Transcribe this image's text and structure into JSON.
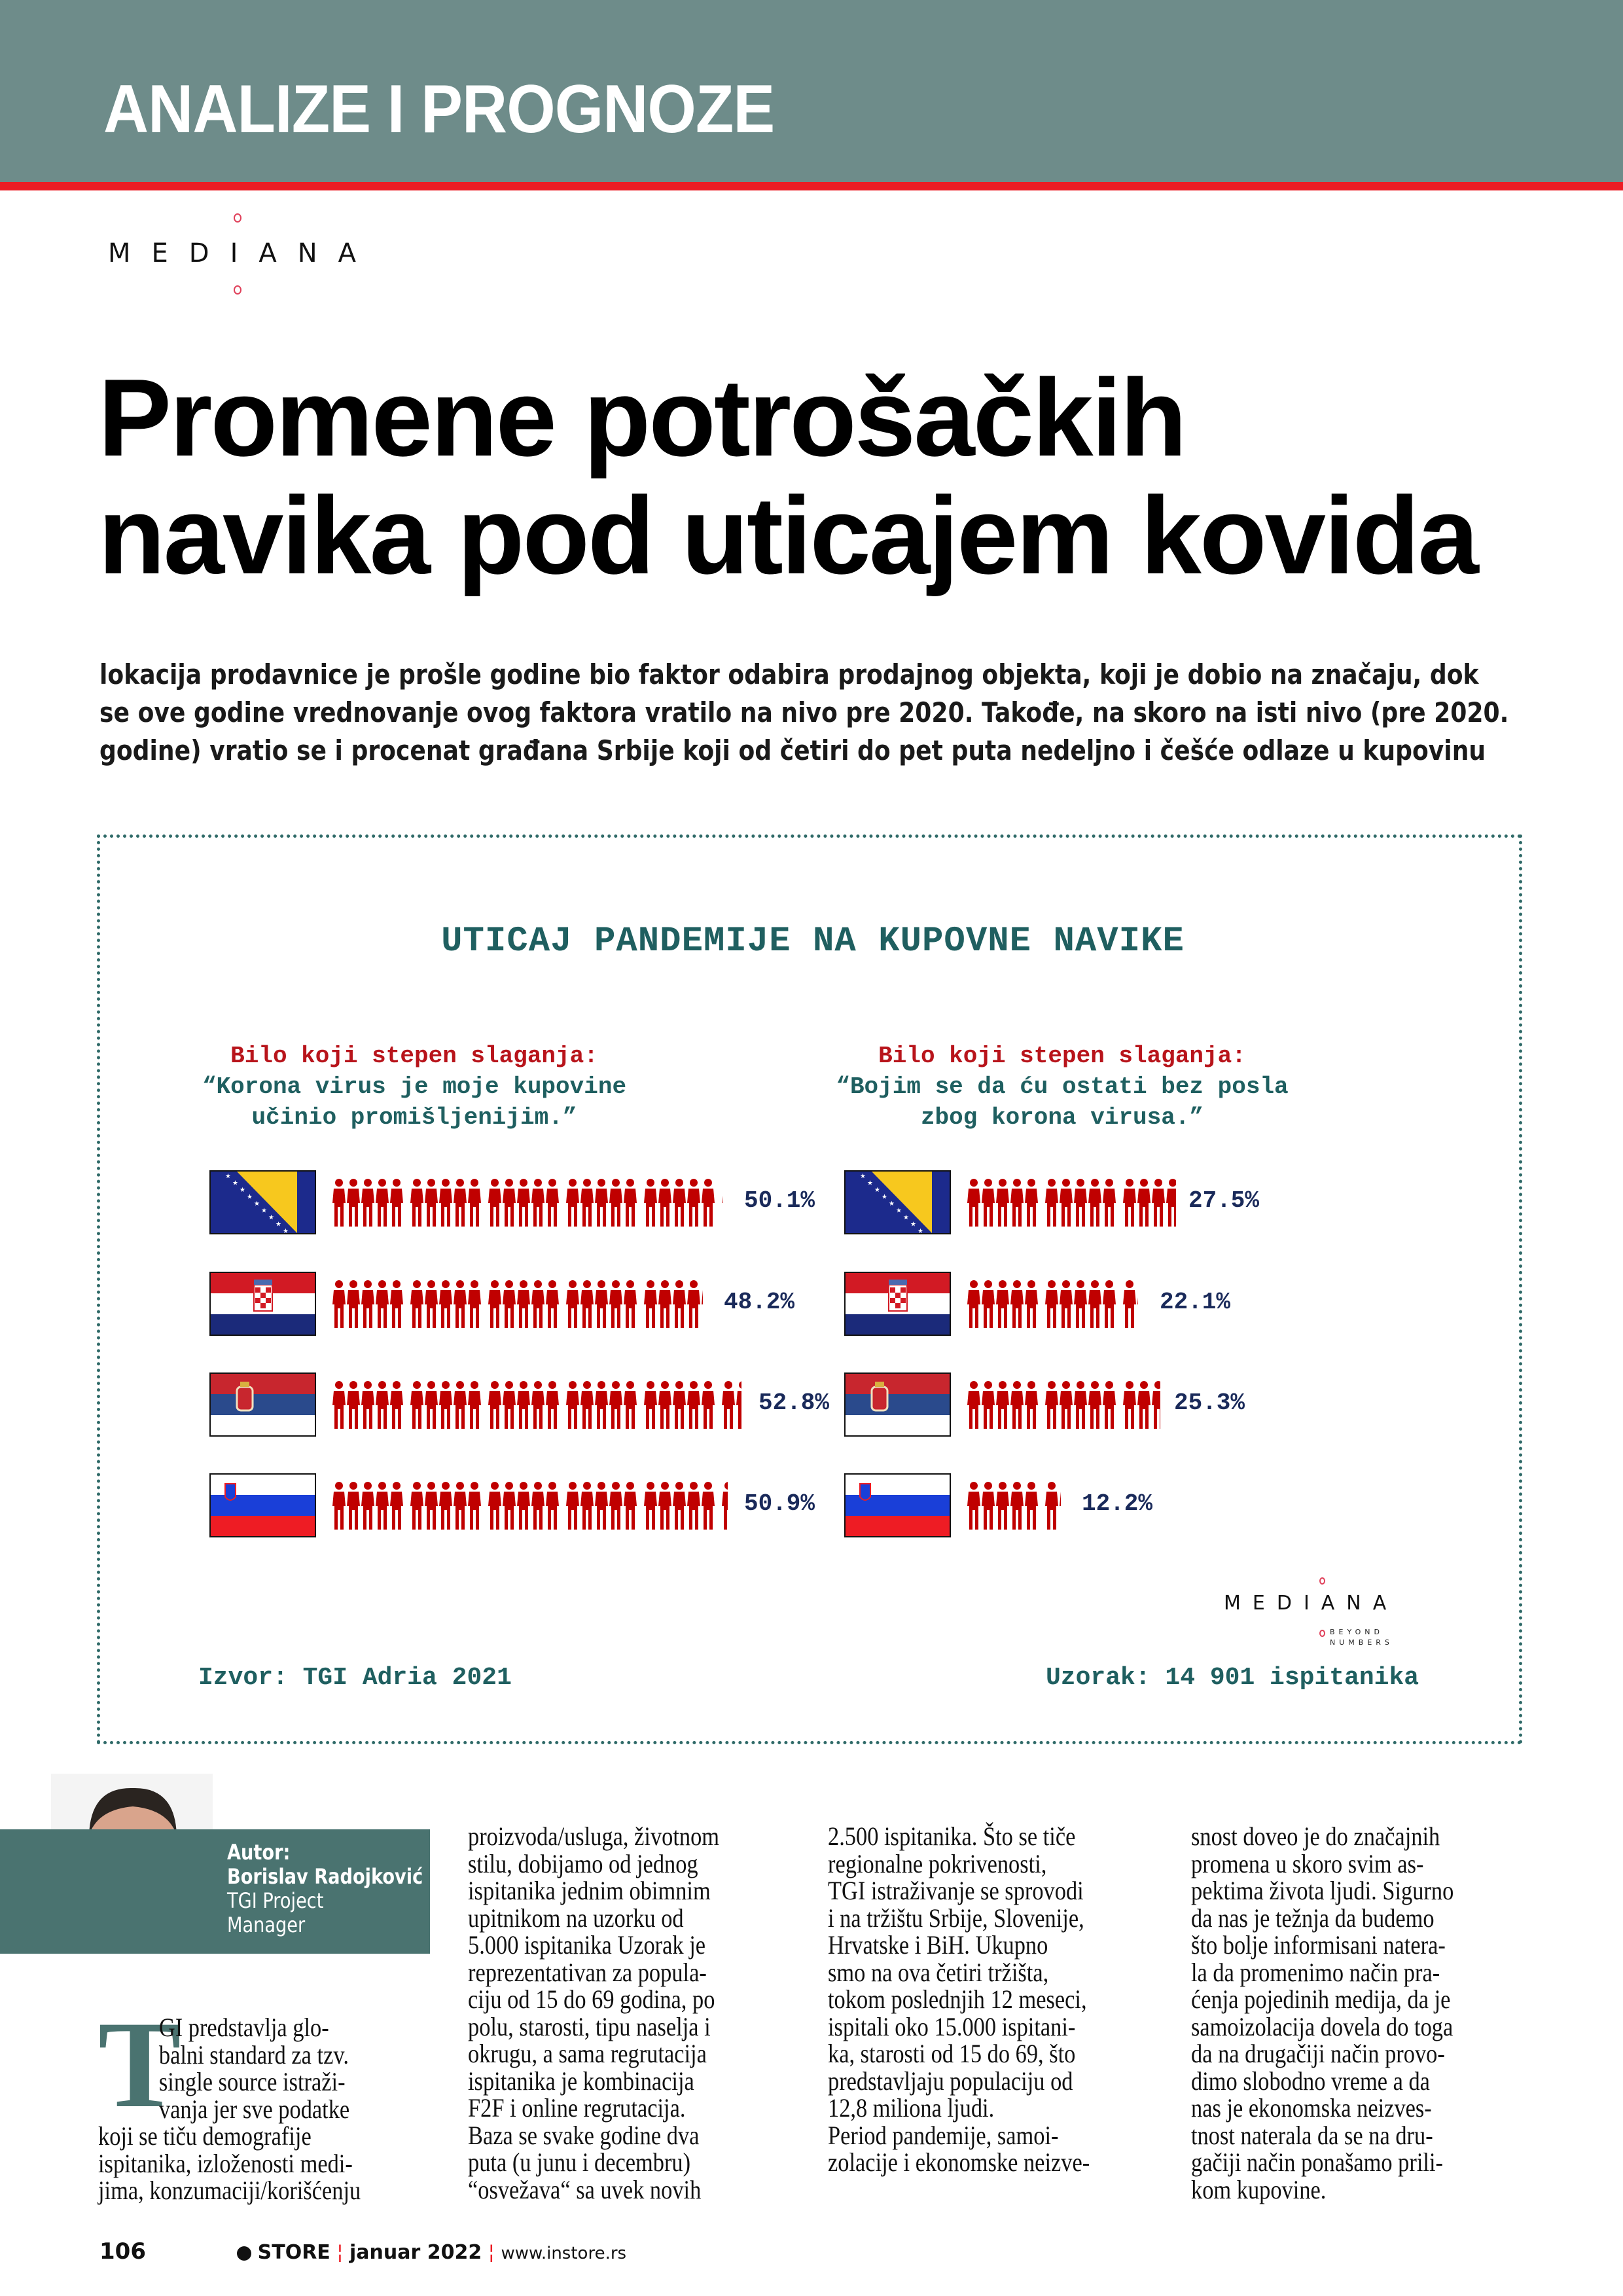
{
  "header": {
    "section_title": "ANALIZE I PROGNOZE",
    "accent_color": "#ec1c24",
    "band_color": "#6e8c8a"
  },
  "logo": {
    "text": "MEDIANA"
  },
  "article": {
    "headline": [
      "Promene potrošačkih",
      "navika pod uticajem kovida"
    ],
    "lead": [
      "lokacija prodavnice je prošle godine bio faktor odabira prodajnog objekta, koji je dobio na značaju, dok",
      "se ove godine vrednovanje ovog faktora vratilo na nivo pre 2020. Takođe, na skoro na isti nivo (pre 2020.",
      "godine) vratio se i procenat građana Srbije koji od četiri do pet puta nedeljno i češće odlaze u kupovinu"
    ],
    "drop_cap": "T",
    "columns": [
      [
        "GI predstavlja glo-",
        "balni standard za tzv.",
        "single source istraži-",
        "vanja jer sve podatke",
        "koji se tiču demografije",
        "ispitanika, izloženosti medi-",
        "jima, konzumaciji/korišćenju"
      ],
      [
        "proizvoda/usluga, životnom",
        "stilu, dobijamo od jednog",
        "ispitanika jednim obimnim",
        "upitnikom na uzorku od",
        "5.000 ispitanika  Uzorak je",
        "reprezentativan za popula-",
        "ciju od 15 do 69 godina, po",
        "polu, starosti, tipu naselja i",
        "okrugu, a sama regrutacija",
        "ispitanika je kombinacija",
        "F2F i online regrutacija.",
        "Baza se svake godine dva",
        "puta (u junu i decembru)",
        "“osvežava“ sa uvek novih"
      ],
      [
        "2.500 ispitanika. Što se tiče",
        "regionalne pokrivenosti,",
        "TGI istraživanje se sprovodi",
        "i na tržištu Srbije, Slovenije,",
        "Hrvatske i BiH. Ukupno",
        "smo na ova četiri tržišta,",
        "tokom poslednjih 12 meseci,",
        "ispitali oko 15.000 ispitani-",
        "ka, starosti od 15 do 69, što",
        "predstavljaju populaciju od",
        "12,8 miliona ljudi.",
        "",
        "   Period pandemije, samoi-",
        "zolacije i ekonomske neizve-"
      ],
      [
        "snost doveo je do značajnih",
        "promena u skoro svim as-",
        "pektima života ljudi. Sigurno",
        "da nas je težnja da budemo",
        "što bolje informisani natera-",
        "la da promenimo način pra-",
        "ćenja pojedinih medija, da je",
        "samoizolacija dovela do toga",
        "da na drugačiji način provo-",
        "dimo slobodno vreme a da",
        "nas je ekonomska neizves-",
        "tnost naterala da se na dru-",
        "gačiji način ponašamo prili-",
        "kom kupovine."
      ]
    ]
  },
  "author": {
    "label": "Autor:",
    "name": "Borislav Radojković",
    "role_line1": "TGI Project",
    "role_line2": "Manager"
  },
  "footer": {
    "page_number": "106",
    "magazine": "STORE",
    "issue": "januar 2022",
    "url": "www.instore.rs"
  },
  "chart_data": {
    "type": "bar",
    "title": "UTICAJ PANDEMIJE NA KUPOVNE NAVIKE",
    "categories": [
      "Bosna i Hercegovina",
      "Hrvatska",
      "Srbija",
      "Slovenija"
    ],
    "unit": "%",
    "panels": [
      {
        "label": "Bilo koji stepen slaganja:",
        "quote_line1": "“Korona virus je moje kupovine",
        "quote_line2": "učinio promišljenijim.”",
        "values": [
          50.1,
          48.2,
          52.8,
          50.9
        ],
        "value_labels": [
          "50.1%",
          "48.2%",
          "52.8%",
          "50.9%"
        ]
      },
      {
        "label": "Bilo koji stepen slaganja:",
        "quote_line1": "“Bojim se da ću ostati bez posla",
        "quote_line2": "zbog korona virusa.”",
        "values": [
          27.5,
          22.1,
          25.3,
          12.2
        ],
        "value_labels": [
          "27.5%",
          "22.1%",
          "25.3%",
          "12.2%"
        ]
      }
    ],
    "icon_color": "#c00000",
    "source": "Izvor: TGI Adria 2021",
    "sample": "Uzorak: 14 901 ispitanika",
    "logo": {
      "text": "MEDIANA",
      "tagline_line1": "BEYOND",
      "tagline_line2": "NUMBERS"
    }
  }
}
